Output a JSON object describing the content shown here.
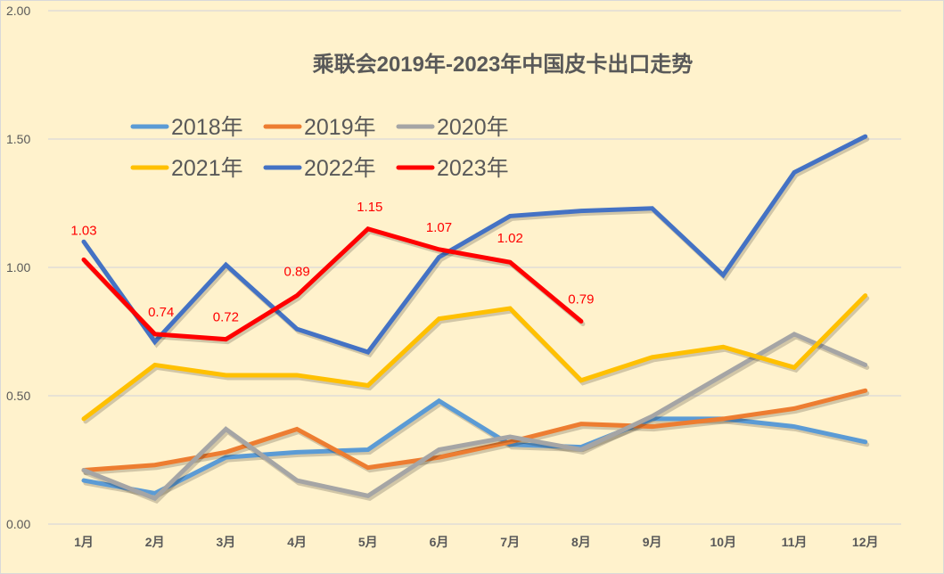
{
  "chart_data": {
    "type": "line",
    "title": "乘联会2019年-2023年中国皮卡出口走势",
    "xlabel": "",
    "ylabel": "",
    "ylim": [
      0,
      2.0
    ],
    "yticks": [
      "0.00",
      "0.50",
      "1.00",
      "1.50",
      "2.00"
    ],
    "grid": true,
    "legend_position": "top-left (inside plot, 2 rows x 3)",
    "categories": [
      "1月",
      "2月",
      "3月",
      "4月",
      "5月",
      "6月",
      "7月",
      "8月",
      "9月",
      "10月",
      "11月",
      "12月"
    ],
    "series": [
      {
        "name": "2018年",
        "color": "#5b9bd5",
        "values": [
          0.17,
          0.12,
          0.26,
          0.28,
          0.29,
          0.48,
          0.31,
          0.3,
          0.41,
          0.41,
          0.38,
          0.32
        ]
      },
      {
        "name": "2019年",
        "color": "#ed7d31",
        "values": [
          0.21,
          0.23,
          0.28,
          0.37,
          0.22,
          0.26,
          0.32,
          0.39,
          0.38,
          0.41,
          0.45,
          0.52
        ]
      },
      {
        "name": "2020年",
        "color": "#a5a5a5",
        "values": [
          0.21,
          0.1,
          0.37,
          0.17,
          0.11,
          0.29,
          0.34,
          0.29,
          0.42,
          0.58,
          0.74,
          0.62
        ]
      },
      {
        "name": "2021年",
        "color": "#ffc000",
        "values": [
          0.41,
          0.62,
          0.58,
          0.58,
          0.54,
          0.8,
          0.84,
          0.56,
          0.65,
          0.69,
          0.61,
          0.89
        ]
      },
      {
        "name": "2022年",
        "color": "#4472c4",
        "values": [
          1.1,
          0.71,
          1.01,
          0.76,
          0.67,
          1.04,
          1.2,
          1.22,
          1.23,
          0.97,
          1.37,
          1.51
        ]
      },
      {
        "name": "2023年",
        "color": "#ff0000",
        "values": [
          1.03,
          0.74,
          0.72,
          0.89,
          1.15,
          1.07,
          1.02,
          0.79
        ],
        "data_labels": [
          "1.03",
          "0.74",
          "0.72",
          "0.89",
          "1.15",
          "1.07",
          "1.02",
          "0.79"
        ]
      }
    ]
  }
}
